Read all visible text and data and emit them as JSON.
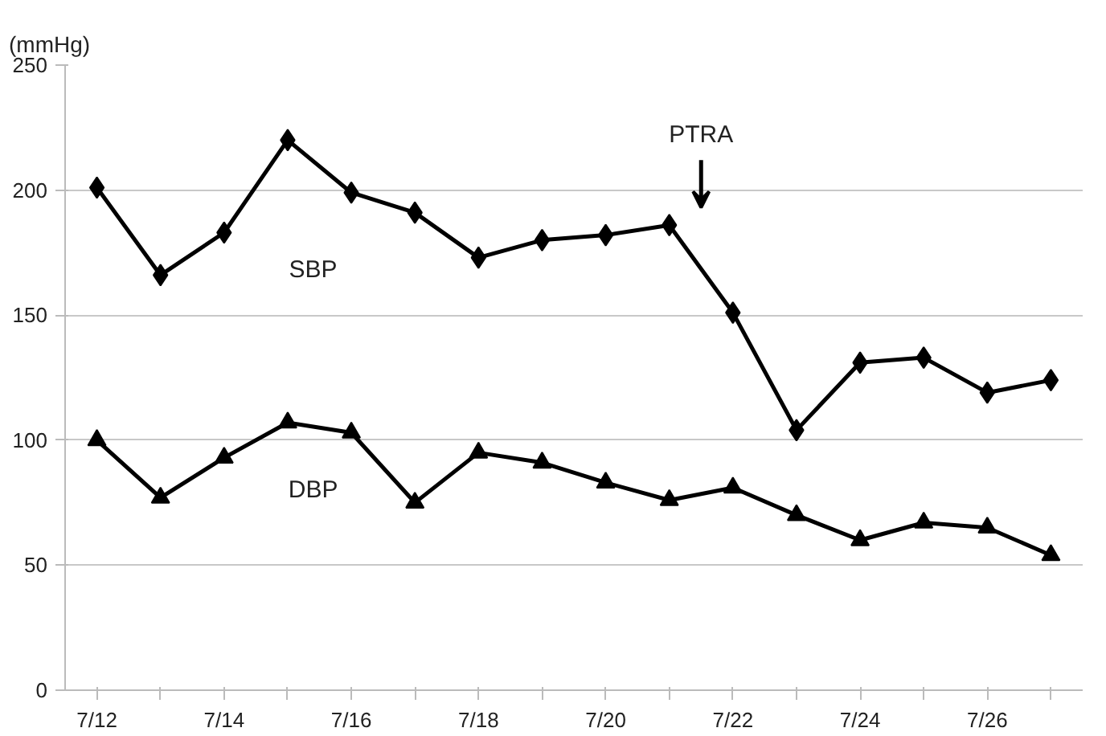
{
  "chart_data": {
    "type": "line",
    "ylabel": "(mmHg)",
    "categories": [
      "7/12",
      null,
      "7/14",
      null,
      "7/16",
      null,
      "7/18",
      null,
      "7/20",
      null,
      "7/22",
      null,
      "7/24",
      null,
      "7/26",
      null
    ],
    "series": [
      {
        "name": "SBP",
        "color": "#000000",
        "marker": "diamond",
        "values": [
          201,
          166,
          183,
          220,
          199,
          191,
          173,
          180,
          182,
          186,
          151,
          104,
          131,
          133,
          119,
          124
        ]
      },
      {
        "name": "DBP",
        "color": "#000000",
        "marker": "triangle",
        "values": [
          100,
          77,
          93,
          107,
          103,
          75,
          95,
          91,
          83,
          76,
          81,
          70,
          60,
          67,
          65,
          54
        ]
      }
    ],
    "ylim": [
      0,
      250
    ],
    "yticks": [
      0,
      50,
      100,
      150,
      200,
      250
    ],
    "grid": "y",
    "line_style": "solid",
    "annotations": [
      "PTRA"
    ]
  }
}
